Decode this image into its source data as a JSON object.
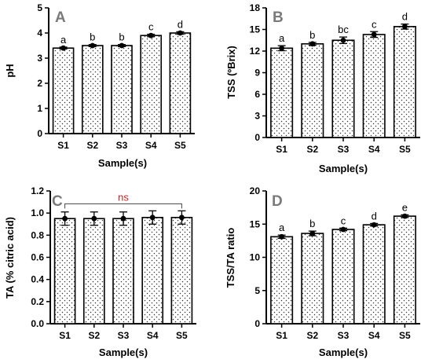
{
  "chart_data": [
    {
      "type": "bar",
      "panel": "A",
      "categories": [
        "S1",
        "S2",
        "S3",
        "S4",
        "S5"
      ],
      "values": [
        3.4,
        3.5,
        3.5,
        3.9,
        4.0
      ],
      "errors": [
        0.04,
        0.04,
        0.04,
        0.05,
        0.05
      ],
      "sig_letters": [
        "a",
        "b",
        "b",
        "c",
        "d"
      ],
      "xlabel": "Sample(s)",
      "ylabel": "pH",
      "ylim": [
        0,
        5
      ],
      "yticks": [
        "0",
        "1",
        "2",
        "3",
        "4",
        "5"
      ],
      "grid": false
    },
    {
      "type": "bar",
      "panel": "B",
      "categories": [
        "S1",
        "S2",
        "S3",
        "S4",
        "S5"
      ],
      "values": [
        12.4,
        13.0,
        13.5,
        14.3,
        15.4
      ],
      "errors": [
        0.35,
        0.2,
        0.45,
        0.4,
        0.35
      ],
      "sig_letters": [
        "a",
        "b",
        "bc",
        "c",
        "d"
      ],
      "xlabel": "Sample(s)",
      "ylabel": "TSS (ºBrix)",
      "ylim": [
        0,
        18
      ],
      "yticks": [
        "0",
        "3",
        "6",
        "9",
        "12",
        "15",
        "18"
      ],
      "grid": false
    },
    {
      "type": "bar",
      "panel": "C",
      "categories": [
        "S1",
        "S2",
        "S3",
        "S4",
        "S5"
      ],
      "values": [
        0.95,
        0.95,
        0.95,
        0.96,
        0.96
      ],
      "errors": [
        0.06,
        0.06,
        0.06,
        0.06,
        0.06
      ],
      "bracket_label": "ns",
      "xlabel": "Sample(s)",
      "ylabel": "TA (% citric acid)",
      "ylim": [
        0,
        1.2
      ],
      "yticks": [
        "0.0",
        "0.2",
        "0.4",
        "0.6",
        "0.8",
        "1.0",
        "1.2"
      ],
      "grid": false
    },
    {
      "type": "bar",
      "panel": "D",
      "categories": [
        "S1",
        "S2",
        "S3",
        "S4",
        "S5"
      ],
      "values": [
        13.1,
        13.6,
        14.2,
        14.9,
        16.2
      ],
      "errors": [
        0.25,
        0.35,
        0.2,
        0.2,
        0.2
      ],
      "sig_letters": [
        "a",
        "b",
        "c",
        "d",
        "e"
      ],
      "xlabel": "Sample(s)",
      "ylabel": "TSS/TA ratio",
      "ylim": [
        0,
        20
      ],
      "yticks": [
        "0",
        "5",
        "10",
        "15",
        "20"
      ],
      "grid": false
    }
  ],
  "colors": {
    "bar_fill": "#ffffff",
    "bar_dots": "#333333",
    "axis": "#000000",
    "panel_letter": "#7a7a7a",
    "ns_text": "#d62020",
    "background": "#ffffff"
  }
}
